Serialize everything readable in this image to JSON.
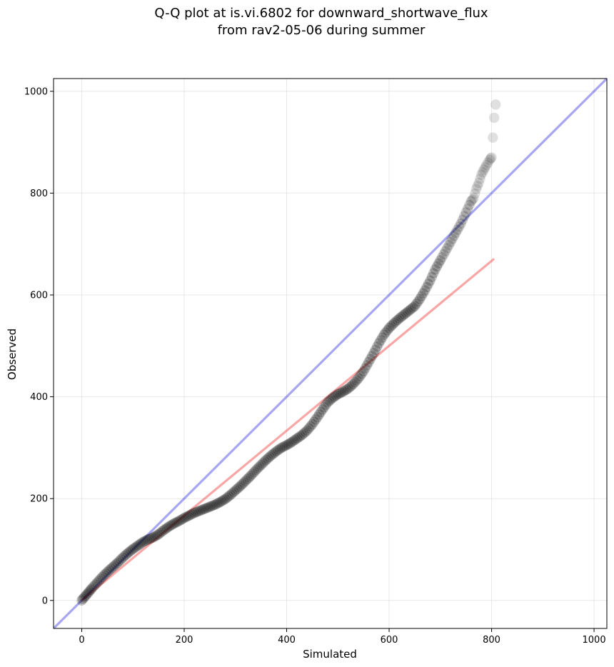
{
  "chart_data": {
    "type": "scatter",
    "title_lines": [
      "Q-Q plot at is.vi.6802 for downward_shortwave_flux",
      "from rav2-05-06 during summer"
    ],
    "xlabel": "Simulated",
    "ylabel": "Observed",
    "xlim": [
      -55,
      1025
    ],
    "ylim": [
      -55,
      1025
    ],
    "xticks": [
      0,
      200,
      400,
      600,
      800,
      1000
    ],
    "yticks": [
      0,
      200,
      400,
      600,
      800,
      1000
    ],
    "grid": true,
    "quantiles": {
      "x": [
        0,
        2,
        5,
        10,
        15,
        20,
        30,
        40,
        50,
        60,
        70,
        80,
        90,
        100,
        110,
        120,
        130,
        140,
        150,
        160,
        170,
        180,
        190,
        200,
        210,
        220,
        230,
        240,
        250,
        260,
        270,
        280,
        290,
        300,
        310,
        320,
        330,
        340,
        350,
        360,
        370,
        380,
        390,
        400,
        410,
        420,
        430,
        440,
        450,
        460,
        470,
        480,
        490,
        500,
        510,
        520,
        530,
        540,
        550,
        560,
        570,
        580,
        590,
        600,
        610,
        620,
        630,
        640,
        650,
        660,
        670,
        680,
        690,
        700,
        710,
        720,
        730,
        740,
        750,
        760,
        765,
        770,
        775,
        780,
        785,
        790,
        793,
        796,
        798,
        800,
        805,
        808
      ],
      "y": [
        0,
        3,
        6,
        12,
        18,
        24,
        35,
        46,
        56,
        65,
        74,
        84,
        93,
        101,
        108,
        115,
        120,
        124,
        130,
        138,
        145,
        151,
        156,
        162,
        167,
        172,
        176,
        180,
        184,
        188,
        193,
        199,
        207,
        216,
        225,
        235,
        245,
        256,
        266,
        276,
        285,
        293,
        300,
        305,
        311,
        318,
        325,
        334,
        346,
        360,
        375,
        389,
        398,
        405,
        410,
        416,
        425,
        436,
        450,
        468,
        486,
        505,
        522,
        535,
        545,
        554,
        562,
        570,
        578,
        592,
        609,
        628,
        650,
        668,
        686,
        704,
        722,
        740,
        762,
        784,
        790,
        808,
        820,
        836,
        846,
        855,
        860,
        865,
        868,
        870,
        948,
        974
      ]
    },
    "reference_lines": [
      {
        "kind": "identity",
        "color": "#0000dd",
        "from": [
          -55,
          -55
        ],
        "to": [
          1025,
          1025
        ]
      },
      {
        "kind": "fit",
        "color": "#ee0000",
        "from": [
          0,
          0
        ],
        "to": [
          805,
          671
        ]
      }
    ],
    "colors": {
      "points": "#000000",
      "identity_line": "#0000dd",
      "fit_line": "#ee0000",
      "grid": "#d9d9d9"
    }
  }
}
